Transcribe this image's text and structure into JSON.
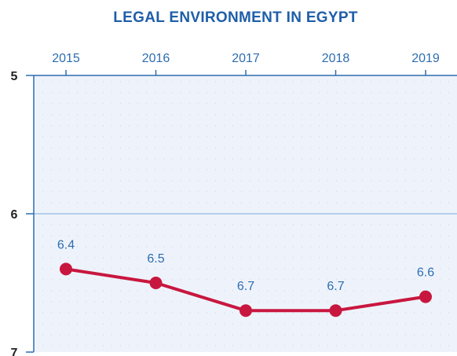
{
  "chart_data": {
    "type": "line",
    "title": "LEGAL ENVIRONMENT IN EGYPT",
    "x": [
      "2015",
      "2016",
      "2017",
      "2018",
      "2019"
    ],
    "series": [
      {
        "values": [
          6.4,
          6.5,
          6.7,
          6.7,
          6.6
        ],
        "labels": [
          "6.4",
          "6.5",
          "6.7",
          "6.7",
          "6.6"
        ],
        "color": "#c8173f"
      }
    ],
    "y_ticks": [
      "5",
      "6",
      "7"
    ],
    "ylim": [
      5,
      7
    ],
    "y_inverted": true,
    "x_axis_position": "top",
    "grid": "dotted",
    "colors": {
      "title": "#1f5ea8",
      "axis": "#2e6db0",
      "plot_bg": "#eef3fb",
      "line": "#c8173f"
    }
  }
}
